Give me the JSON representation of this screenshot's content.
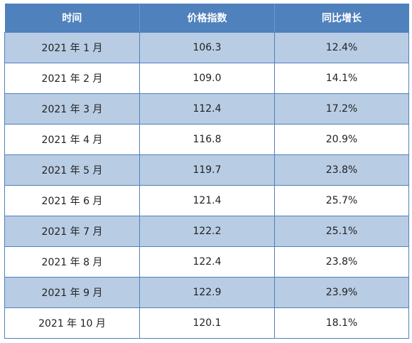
{
  "table": {
    "headers": [
      "时间",
      "价格指数",
      "同比增长"
    ],
    "rows": [
      [
        "2021 年 1 月",
        "106.3",
        "12.4%"
      ],
      [
        "2021 年 2 月",
        "109.0",
        "14.1%"
      ],
      [
        "2021 年 3 月",
        "112.4",
        "17.2%"
      ],
      [
        "2021 年 4 月",
        "116.8",
        "20.9%"
      ],
      [
        "2021 年 5 月",
        "119.7",
        "23.8%"
      ],
      [
        "2021 年 6 月",
        "121.4",
        "25.7%"
      ],
      [
        "2021 年 7 月",
        "122.2",
        "25.1%"
      ],
      [
        "2021 年 8 月",
        "122.4",
        "23.8%"
      ],
      [
        "2021 年 9 月",
        "122.9",
        "23.9%"
      ],
      [
        "2021 年 10 月",
        "120.1",
        "18.1%"
      ]
    ],
    "colors": {
      "header_bg": "#4f81bd",
      "band_bg": "#b8cce4",
      "plain_bg": "#ffffff"
    }
  }
}
